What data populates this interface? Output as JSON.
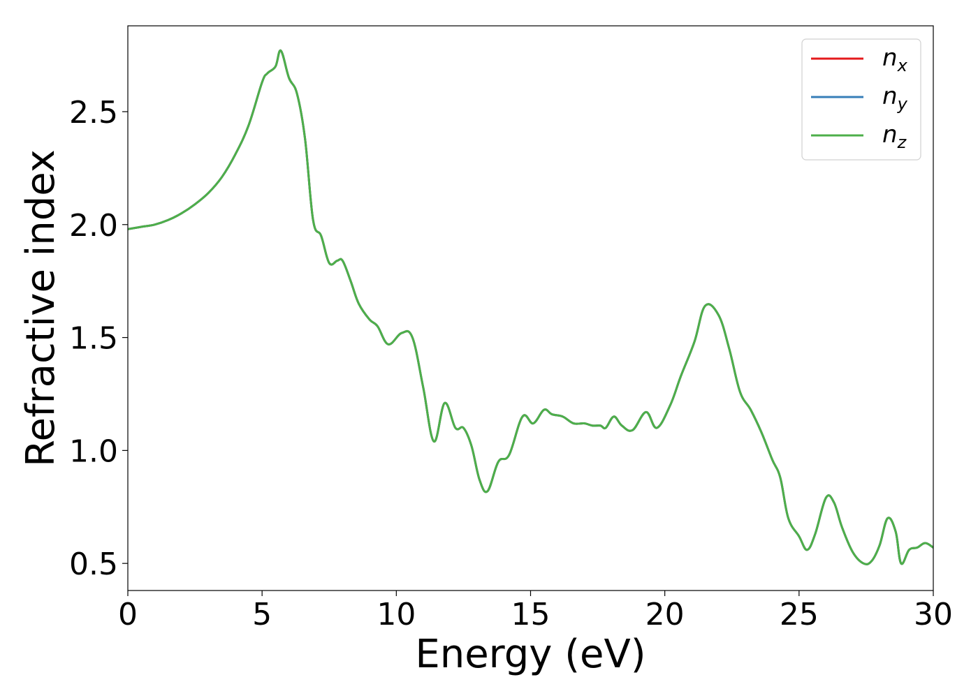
{
  "chart_data": {
    "type": "line",
    "title": "",
    "xlabel": "Energy (eV)",
    "ylabel": "Refractive index",
    "xlim": [
      0,
      30
    ],
    "ylim": [
      0.38,
      2.88
    ],
    "xticks": [
      0,
      5,
      10,
      15,
      20,
      25,
      30
    ],
    "xtick_labels": [
      "0",
      "5",
      "10",
      "15",
      "20",
      "25",
      "30"
    ],
    "yticks": [
      0.5,
      1.0,
      1.5,
      2.0,
      2.5
    ],
    "ytick_labels": [
      "0.5",
      "1.0",
      "1.5",
      "2.0",
      "2.5"
    ],
    "grid": false,
    "legend_position": "top-right",
    "x": [
      0,
      0.5,
      1,
      1.5,
      2,
      2.5,
      3,
      3.5,
      4,
      4.5,
      5,
      5.2,
      5.5,
      5.7,
      6,
      6.3,
      6.6,
      6.9,
      7.2,
      7.5,
      7.8,
      8.0,
      8.3,
      8.6,
      9.0,
      9.3,
      9.7,
      10.2,
      10.6,
      11.0,
      11.4,
      11.8,
      12.2,
      12.5,
      12.8,
      13.1,
      13.4,
      13.8,
      14.2,
      14.7,
      15.1,
      15.5,
      15.8,
      16.2,
      16.6,
      17.0,
      17.3,
      17.6,
      17.8,
      18.1,
      18.4,
      18.8,
      19.3,
      19.7,
      20.2,
      20.6,
      21.1,
      21.5,
      22.0,
      22.4,
      22.8,
      23.2,
      23.6,
      24.0,
      24.3,
      24.6,
      25.0,
      25.3,
      25.6,
      26.0,
      26.3,
      26.6,
      27.0,
      27.4,
      27.7,
      28.0,
      28.3,
      28.6,
      28.8,
      29.1,
      29.4,
      29.7,
      30.0
    ],
    "series": [
      {
        "name": "n_x",
        "legend_main": "n",
        "legend_sub": "x",
        "color": "#e41a1c",
        "values": [
          1.98,
          1.99,
          2.0,
          2.02,
          2.05,
          2.09,
          2.14,
          2.21,
          2.31,
          2.44,
          2.63,
          2.67,
          2.7,
          2.77,
          2.65,
          2.58,
          2.38,
          2.02,
          1.95,
          1.83,
          1.84,
          1.84,
          1.75,
          1.65,
          1.58,
          1.55,
          1.47,
          1.52,
          1.5,
          1.28,
          1.04,
          1.21,
          1.1,
          1.1,
          1.02,
          0.87,
          0.82,
          0.95,
          0.98,
          1.15,
          1.12,
          1.18,
          1.16,
          1.15,
          1.12,
          1.12,
          1.11,
          1.11,
          1.1,
          1.15,
          1.11,
          1.09,
          1.17,
          1.1,
          1.2,
          1.33,
          1.48,
          1.64,
          1.6,
          1.45,
          1.26,
          1.18,
          1.08,
          0.96,
          0.88,
          0.7,
          0.62,
          0.56,
          0.63,
          0.79,
          0.77,
          0.66,
          0.55,
          0.5,
          0.51,
          0.58,
          0.7,
          0.64,
          0.5,
          0.56,
          0.57,
          0.59,
          0.57
        ]
      },
      {
        "name": "n_y",
        "legend_main": "n",
        "legend_sub": "y",
        "color": "#377eb8",
        "values": [
          1.98,
          1.99,
          2.0,
          2.02,
          2.05,
          2.09,
          2.14,
          2.21,
          2.31,
          2.44,
          2.63,
          2.67,
          2.7,
          2.77,
          2.65,
          2.58,
          2.38,
          2.02,
          1.95,
          1.83,
          1.84,
          1.84,
          1.75,
          1.65,
          1.58,
          1.55,
          1.47,
          1.52,
          1.5,
          1.28,
          1.04,
          1.21,
          1.1,
          1.1,
          1.02,
          0.87,
          0.82,
          0.95,
          0.98,
          1.15,
          1.12,
          1.18,
          1.16,
          1.15,
          1.12,
          1.12,
          1.11,
          1.11,
          1.1,
          1.15,
          1.11,
          1.09,
          1.17,
          1.1,
          1.2,
          1.33,
          1.48,
          1.64,
          1.6,
          1.45,
          1.26,
          1.18,
          1.08,
          0.96,
          0.88,
          0.7,
          0.62,
          0.56,
          0.63,
          0.79,
          0.77,
          0.66,
          0.55,
          0.5,
          0.51,
          0.58,
          0.7,
          0.64,
          0.5,
          0.56,
          0.57,
          0.59,
          0.57
        ]
      },
      {
        "name": "n_z",
        "legend_main": "n",
        "legend_sub": "z",
        "color": "#4daf4a",
        "values": [
          1.98,
          1.99,
          2.0,
          2.02,
          2.05,
          2.09,
          2.14,
          2.21,
          2.31,
          2.44,
          2.63,
          2.67,
          2.7,
          2.77,
          2.65,
          2.58,
          2.38,
          2.02,
          1.95,
          1.83,
          1.84,
          1.84,
          1.75,
          1.65,
          1.58,
          1.55,
          1.47,
          1.52,
          1.5,
          1.28,
          1.04,
          1.21,
          1.1,
          1.1,
          1.02,
          0.87,
          0.82,
          0.95,
          0.98,
          1.15,
          1.12,
          1.18,
          1.16,
          1.15,
          1.12,
          1.12,
          1.11,
          1.11,
          1.1,
          1.15,
          1.11,
          1.09,
          1.17,
          1.1,
          1.2,
          1.33,
          1.48,
          1.64,
          1.6,
          1.45,
          1.26,
          1.18,
          1.08,
          0.96,
          0.88,
          0.7,
          0.62,
          0.56,
          0.63,
          0.79,
          0.77,
          0.66,
          0.55,
          0.5,
          0.51,
          0.58,
          0.7,
          0.64,
          0.5,
          0.56,
          0.57,
          0.59,
          0.57
        ]
      }
    ]
  }
}
